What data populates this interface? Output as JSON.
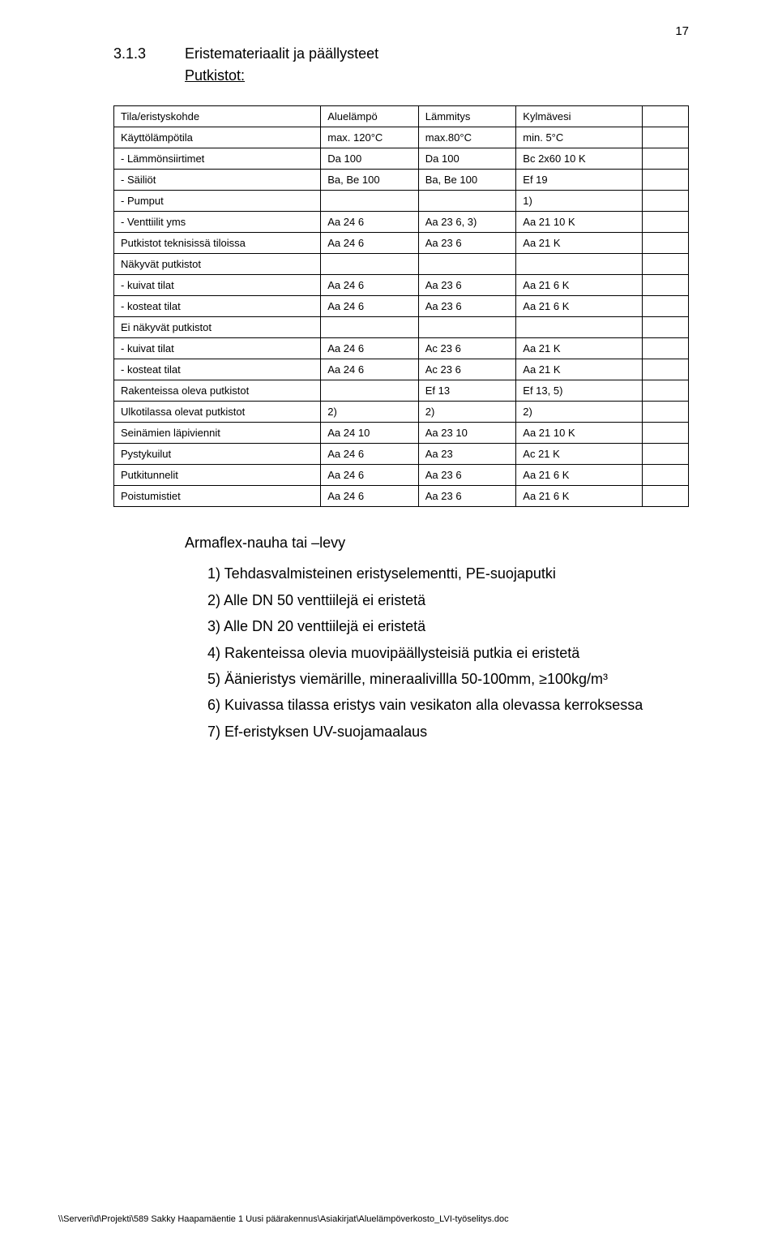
{
  "page_number": "17",
  "section": {
    "number": "3.1.3",
    "title": "Eristemateriaalit ja päällysteet",
    "subtitle": "Putkistot:"
  },
  "table": {
    "headers": [
      "Tila/eristyskohde",
      "Aluelämpö",
      "Lämmitys",
      "Kylmävesi",
      ""
    ],
    "rows": [
      [
        "Käyttölämpötila",
        "max. 120°C",
        "max.80°C",
        "min. 5°C",
        ""
      ],
      [
        "- Lämmönsiirtimet",
        "Da 100",
        "Da 100",
        "Bc 2x60 10 K",
        ""
      ],
      [
        "- Säiliöt",
        "Ba, Be 100",
        "Ba, Be 100",
        "Ef 19",
        ""
      ],
      [
        "- Pumput",
        "",
        "",
        "1)",
        ""
      ],
      [
        "- Venttiilit yms",
        "Aa 24 6",
        "Aa 23 6, 3)",
        "Aa 21 10 K",
        ""
      ],
      [
        "Putkistot teknisissä tiloissa",
        "Aa 24 6",
        "Aa 23 6",
        "Aa 21 K",
        ""
      ],
      [
        "Näkyvät putkistot",
        "",
        "",
        "",
        ""
      ],
      [
        "- kuivat tilat",
        "Aa 24 6",
        "Aa 23 6",
        "Aa 21 6 K",
        ""
      ],
      [
        "- kosteat tilat",
        "Aa 24 6",
        "Aa 23 6",
        "Aa 21 6 K",
        ""
      ],
      [
        "Ei näkyvät putkistot",
        "",
        "",
        "",
        ""
      ],
      [
        "- kuivat tilat",
        "Aa 24 6",
        "Ac 23 6",
        "Aa 21 K",
        ""
      ],
      [
        "- kosteat tilat",
        "Aa 24 6",
        "Ac 23 6",
        "Aa 21 K",
        ""
      ],
      [
        "Rakenteissa oleva putkistot",
        "",
        "Ef 13",
        "Ef 13, 5)",
        ""
      ],
      [
        "Ulkotilassa olevat putkistot",
        "2)",
        "2)",
        "2)",
        ""
      ],
      [
        "Seinämien läpiviennit",
        "Aa 24 10",
        "Aa 23 10",
        "Aa 21 10 K",
        ""
      ],
      [
        "Pystykuilut",
        "Aa 24 6",
        "Aa 23",
        "Ac 21 K",
        ""
      ],
      [
        "Putkitunnelit",
        "Aa 24 6",
        "Aa 23 6",
        "Aa 21 6 K",
        ""
      ],
      [
        "Poistumistiet",
        "Aa 24 6",
        "Aa 23 6",
        "Aa 21 6 K",
        ""
      ]
    ],
    "col_widths": [
      "36%",
      "17%",
      "17%",
      "22%",
      "8%"
    ]
  },
  "notes": {
    "heading": "Armaflex-nauha tai –levy",
    "items": [
      "1) Tehdasvalmisteinen eristyselementti, PE-suojaputki",
      "2) Alle DN 50 venttiilejä ei eristetä",
      "3) Alle DN 20 venttiilejä ei eristetä",
      "4) Rakenteissa olevia muovipäällysteisiä putkia ei eristetä",
      "5) Äänieristys viemärille, mineraalivillla 50-100mm, ≥100kg/m³",
      "6) Kuivassa tilassa eristys vain vesikaton alla olevassa kerroksessa",
      "7) Ef-eristyksen UV-suojamaalaus"
    ]
  },
  "footer": "\\\\Serveri\\d\\Projekti\\589 Sakky Haapamäentie 1 Uusi päärakennus\\Asiakirjat\\Aluelämpöverkosto_LVI-työselitys.doc"
}
